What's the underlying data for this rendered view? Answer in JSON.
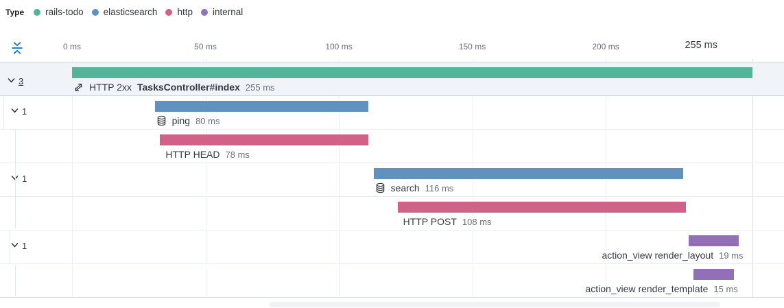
{
  "legend": {
    "title": "Type",
    "items": [
      {
        "label": "rails-todo",
        "color": "#54B399"
      },
      {
        "label": "elasticsearch",
        "color": "#6092C0"
      },
      {
        "label": "http",
        "color": "#D36086"
      },
      {
        "label": "internal",
        "color": "#9170B8"
      }
    ]
  },
  "axis": {
    "ticks": [
      {
        "label": "0 ms",
        "ms": 0,
        "emphasis": false
      },
      {
        "label": "50 ms",
        "ms": 50,
        "emphasis": false
      },
      {
        "label": "100 ms",
        "ms": 100,
        "emphasis": false
      },
      {
        "label": "150 ms",
        "ms": 150,
        "emphasis": false
      },
      {
        "label": "200 ms",
        "ms": 200,
        "emphasis": false
      },
      {
        "label": "255 ms",
        "ms": 255,
        "emphasis": true
      }
    ]
  },
  "chart_data": {
    "type": "bar",
    "variant": "distributed-trace-waterfall",
    "title": "",
    "xlabel": "ms",
    "x_unit": "ms",
    "xlim": [
      0,
      255
    ],
    "x_ticks": [
      "0 ms",
      "50 ms",
      "100 ms",
      "150 ms",
      "200 ms",
      "255 ms"
    ],
    "grid": true,
    "legend_position": "top-left",
    "colors": {
      "rails-todo": "#54B399",
      "elasticsearch": "#6092C0",
      "http": "#D36086",
      "internal": "#9170B8"
    },
    "rows": [
      {
        "kind": "transaction",
        "icon": "merge-icon",
        "prefix": "HTTP 2xx",
        "name": "TasksController#index",
        "name_bold": true,
        "start_ms": 0,
        "duration_ms": 255,
        "duration_label": "255 ms",
        "type": "rails-todo",
        "toggle_count": "3",
        "selected": true,
        "label_align": "left",
        "depth": 0
      },
      {
        "kind": "span",
        "icon": "database-icon",
        "prefix": "",
        "name": "ping",
        "name_bold": false,
        "start_ms": 31,
        "duration_ms": 80,
        "duration_label": "80 ms",
        "type": "elasticsearch",
        "toggle_count": "1",
        "selected": false,
        "label_align": "left",
        "depth": 1
      },
      {
        "kind": "span",
        "icon": "",
        "prefix": "",
        "name": "HTTP HEAD",
        "name_bold": false,
        "start_ms": 33,
        "duration_ms": 78,
        "duration_label": "78 ms",
        "type": "http",
        "toggle_count": "",
        "selected": false,
        "label_align": "left",
        "depth": 2
      },
      {
        "kind": "span",
        "icon": "database-icon",
        "prefix": "",
        "name": "search",
        "name_bold": false,
        "start_ms": 113,
        "duration_ms": 116,
        "duration_label": "116 ms",
        "type": "elasticsearch",
        "toggle_count": "1",
        "selected": false,
        "label_align": "left",
        "depth": 1
      },
      {
        "kind": "span",
        "icon": "",
        "prefix": "",
        "name": "HTTP POST",
        "name_bold": false,
        "start_ms": 122,
        "duration_ms": 108,
        "duration_label": "108 ms",
        "type": "http",
        "toggle_count": "",
        "selected": false,
        "label_align": "left",
        "depth": 2
      },
      {
        "kind": "span",
        "icon": "",
        "prefix": "",
        "name": "action_view render_layout",
        "name_bold": false,
        "start_ms": 231,
        "duration_ms": 19,
        "duration_label": "19 ms",
        "type": "internal",
        "toggle_count": "1",
        "selected": false,
        "label_align": "right",
        "depth": 1
      },
      {
        "kind": "span",
        "icon": "",
        "prefix": "",
        "name": "action_view render_template",
        "name_bold": false,
        "start_ms": 233,
        "duration_ms": 15,
        "duration_label": "15 ms",
        "type": "internal",
        "toggle_count": "",
        "selected": false,
        "label_align": "right",
        "depth": 2
      }
    ]
  }
}
